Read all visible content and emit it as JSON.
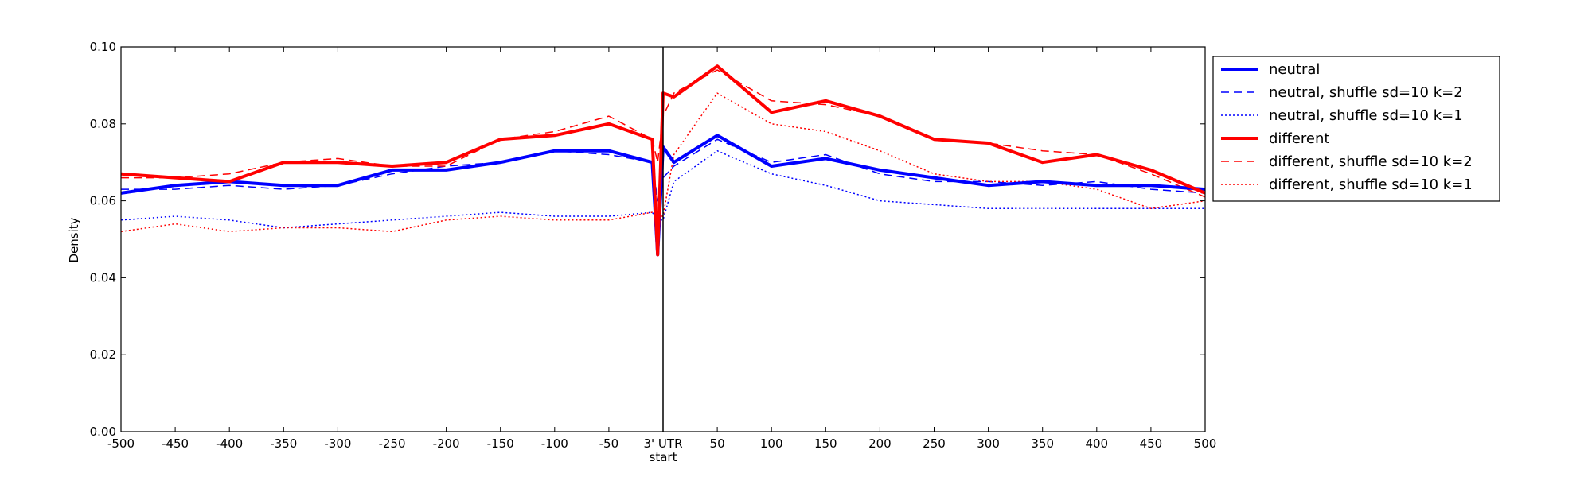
{
  "chart_data": {
    "type": "line",
    "title": "",
    "xlabel": "start",
    "ylabel": "Density",
    "xlim": [
      -500,
      500
    ],
    "ylim": [
      0,
      0.1
    ],
    "xticks": [
      -500,
      -450,
      -400,
      -350,
      -300,
      -250,
      -200,
      -150,
      -100,
      -50,
      0,
      50,
      100,
      150,
      200,
      250,
      300,
      350,
      400,
      450,
      500
    ],
    "xtick_labels": [
      "-500",
      "-450",
      "-400",
      "-350",
      "-300",
      "-250",
      "-200",
      "-150",
      "-100",
      "-50",
      "3' UTR",
      "50",
      "100",
      "150",
      "200",
      "250",
      "300",
      "350",
      "400",
      "450",
      "500"
    ],
    "yticks": [
      0,
      0.02,
      0.04,
      0.06,
      0.08,
      0.1
    ],
    "ytick_labels": [
      "0.00",
      "0.02",
      "0.04",
      "0.06",
      "0.08",
      "0.10"
    ],
    "vline_x": 0,
    "grid": false,
    "legend_position": "outside-right-top",
    "x": [
      -500,
      -450,
      -400,
      -350,
      -300,
      -250,
      -200,
      -150,
      -100,
      -50,
      -10,
      -5,
      0,
      10,
      50,
      100,
      150,
      200,
      250,
      300,
      350,
      400,
      450,
      500
    ],
    "series": [
      {
        "name": "neutral",
        "color": "#0000ff",
        "style": "solid",
        "width": 4,
        "values": [
          0.062,
          0.064,
          0.065,
          0.064,
          0.064,
          0.068,
          0.068,
          0.07,
          0.073,
          0.073,
          0.07,
          0.046,
          0.074,
          0.07,
          0.077,
          0.069,
          0.071,
          0.068,
          0.066,
          0.064,
          0.065,
          0.064,
          0.064,
          0.063
        ]
      },
      {
        "name": "neutral, shuffle sd=10 k=2",
        "color": "#0000ff",
        "style": "dashed",
        "width": 1.5,
        "values": [
          0.063,
          0.063,
          0.064,
          0.063,
          0.064,
          0.067,
          0.069,
          0.07,
          0.073,
          0.072,
          0.07,
          0.06,
          0.066,
          0.069,
          0.076,
          0.07,
          0.072,
          0.067,
          0.065,
          0.065,
          0.064,
          0.065,
          0.063,
          0.062
        ]
      },
      {
        "name": "neutral, shuffle sd=10 k=1",
        "color": "#0000ff",
        "style": "dotted",
        "width": 1.5,
        "values": [
          0.055,
          0.056,
          0.055,
          0.053,
          0.054,
          0.055,
          0.056,
          0.057,
          0.056,
          0.056,
          0.057,
          0.055,
          0.055,
          0.065,
          0.073,
          0.067,
          0.064,
          0.06,
          0.059,
          0.058,
          0.058,
          0.058,
          0.058,
          0.058
        ]
      },
      {
        "name": "different",
        "color": "#ff0000",
        "style": "solid",
        "width": 4,
        "values": [
          0.067,
          0.066,
          0.065,
          0.07,
          0.07,
          0.069,
          0.07,
          0.076,
          0.077,
          0.08,
          0.076,
          0.046,
          0.088,
          0.087,
          0.095,
          0.083,
          0.086,
          0.082,
          0.076,
          0.075,
          0.07,
          0.072,
          0.068,
          0.062
        ]
      },
      {
        "name": "different, shuffle sd=10 k=2",
        "color": "#ff0000",
        "style": "dashed",
        "width": 1.5,
        "values": [
          0.066,
          0.066,
          0.067,
          0.07,
          0.071,
          0.069,
          0.069,
          0.076,
          0.078,
          0.082,
          0.076,
          0.07,
          0.082,
          0.088,
          0.094,
          0.086,
          0.085,
          0.082,
          0.076,
          0.075,
          0.073,
          0.072,
          0.067,
          0.061
        ]
      },
      {
        "name": "different, shuffle sd=10 k=1",
        "color": "#ff0000",
        "style": "dotted",
        "width": 1.5,
        "values": [
          0.052,
          0.054,
          0.052,
          0.053,
          0.053,
          0.052,
          0.055,
          0.056,
          0.055,
          0.055,
          0.057,
          0.056,
          0.056,
          0.072,
          0.088,
          0.08,
          0.078,
          0.073,
          0.067,
          0.065,
          0.065,
          0.063,
          0.058,
          0.06
        ]
      }
    ]
  }
}
